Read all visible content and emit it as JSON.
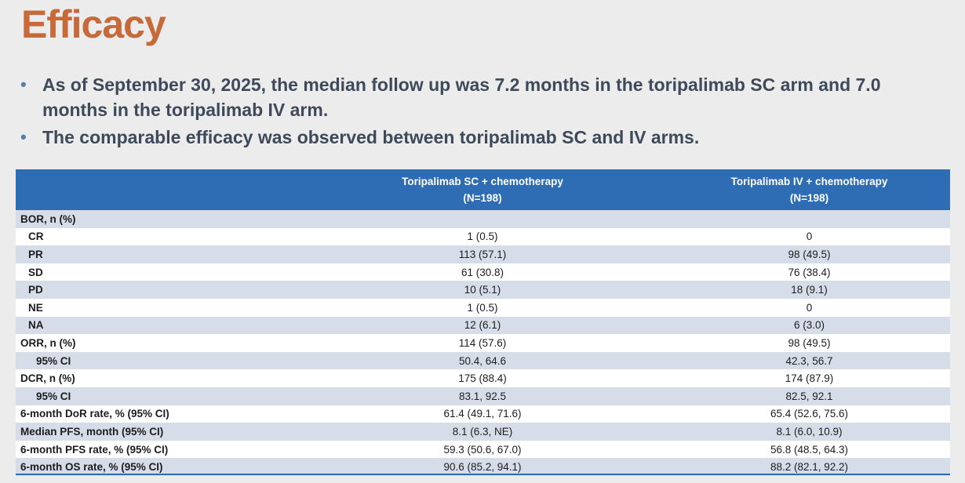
{
  "title": "Efficacy",
  "bullets": [
    "As of September 30, 2025, the median follow up was 7.2 months in the toripalimab SC arm and 7.0 months in the toripalimab IV arm.",
    "The comparable efficacy was observed between toripalimab SC and IV arms."
  ],
  "table": {
    "headers": [
      {
        "line1": "",
        "line2": ""
      },
      {
        "line1": "Toripalimab SC + chemotherapy",
        "line2": "(N=198)"
      },
      {
        "line1": "Toripalimab IV + chemotherapy",
        "line2": "(N=198)"
      }
    ],
    "rows": [
      {
        "label": "BOR, n (%)",
        "sc": "",
        "iv": ""
      },
      {
        "label": "CR",
        "sc": "1 (0.5)",
        "iv": "0"
      },
      {
        "label": "PR",
        "sc": "113 (57.1)",
        "iv": "98 (49.5)"
      },
      {
        "label": "SD",
        "sc": "61 (30.8)",
        "iv": "76 (38.4)"
      },
      {
        "label": "PD",
        "sc": "10 (5.1)",
        "iv": "18 (9.1)"
      },
      {
        "label": "NE",
        "sc": "1 (0.5)",
        "iv": "0"
      },
      {
        "label": "NA",
        "sc": "12 (6.1)",
        "iv": "6 (3.0)"
      },
      {
        "label": "ORR, n (%)",
        "sc": "114 (57.6)",
        "iv": "98 (49.5)"
      },
      {
        "label": "95% CI",
        "sc": "50.4, 64.6",
        "iv": "42.3, 56.7"
      },
      {
        "label": "DCR, n (%)",
        "sc": "175 (88.4)",
        "iv": "174 (87.9)"
      },
      {
        "label": "95% CI",
        "sc": "83.1, 92.5",
        "iv": "82.5, 92.1"
      },
      {
        "label": "6-month DoR rate, % (95% CI)",
        "sc": "61.4 (49.1, 71.6)",
        "iv": "65.4 (52.6, 75.6)"
      },
      {
        "label": "Median PFS, month (95% CI)",
        "sc": "8.1 (6.3, NE)",
        "iv": "8.1 (6.0, 10.9)"
      },
      {
        "label": "6-month PFS rate, % (95% CI)",
        "sc": "59.3 (50.6, 67.0)",
        "iv": "56.8 (48.5, 64.3)"
      },
      {
        "label": "6-month OS rate, % (95% CI)",
        "sc": "90.6 (85.2, 94.1)",
        "iv": "88.2 (82.1, 92.2)"
      }
    ]
  }
}
